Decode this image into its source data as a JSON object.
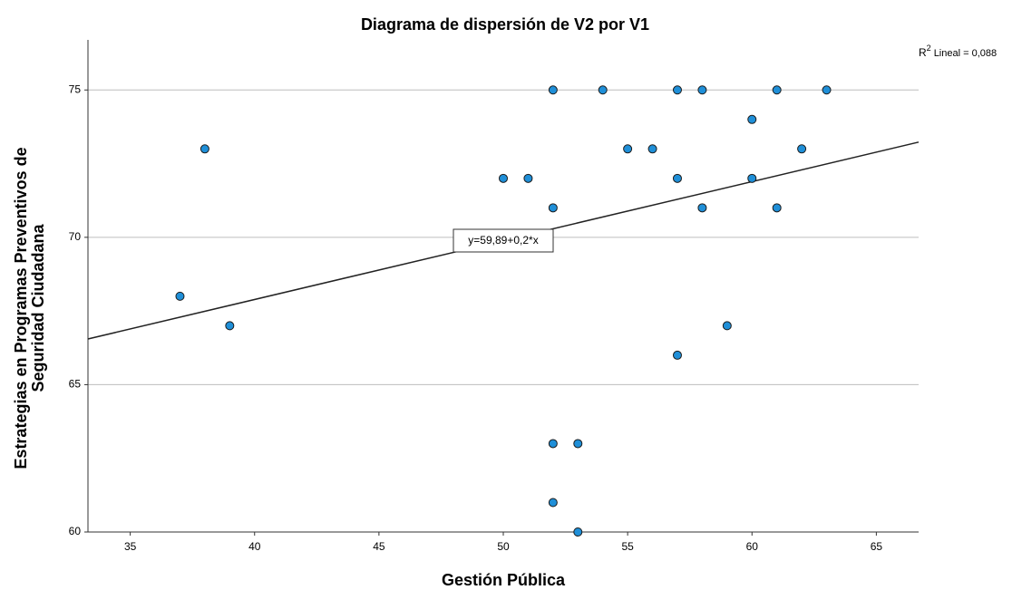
{
  "chart_data": {
    "type": "scatter",
    "title": "Diagrama de dispersión de V2 por V1",
    "xlabel": "Gestión Pública",
    "ylabel": [
      "Estrategias en Programas Preventivos de",
      "Seguridad Ciudadana"
    ],
    "x": [
      52,
      54,
      57,
      58,
      61,
      63,
      60,
      38,
      55,
      56,
      62,
      50,
      51,
      57,
      60,
      52,
      58,
      61,
      37,
      39,
      59,
      57,
      52,
      53,
      52,
      53
    ],
    "values": [
      75,
      75,
      75,
      75,
      75,
      75,
      74,
      73,
      73,
      73,
      73,
      72,
      72,
      72,
      72,
      71,
      71,
      71,
      68,
      67,
      67,
      66,
      63,
      63,
      61,
      60
    ],
    "color": "#1f8fd8",
    "xlim": [
      33.3,
      66.7
    ],
    "xticks": [
      35,
      40,
      45,
      50,
      55,
      60,
      65
    ],
    "ylim": [
      60,
      76.7
    ],
    "yticks": [
      60,
      65,
      70,
      75
    ],
    "grid": true,
    "fit": {
      "intercept": 59.89,
      "slope": 0.2,
      "label": "y=59,89+0,2*x"
    },
    "r2_label": {
      "base": "R",
      "sup": "2",
      "text": "Lineal = 0,088"
    }
  }
}
